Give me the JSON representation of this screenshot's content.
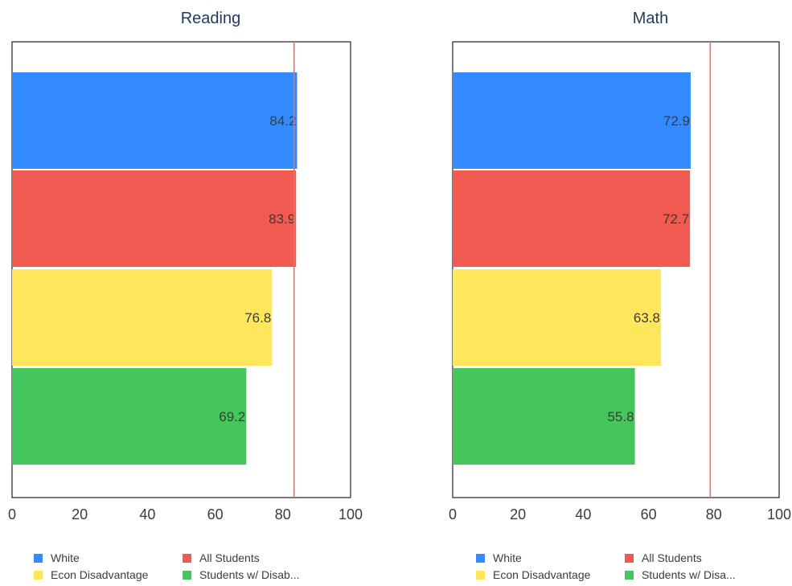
{
  "chart_data": [
    {
      "type": "bar",
      "orientation": "horizontal",
      "title": "Reading",
      "xlim": [
        0,
        100
      ],
      "xticks": [
        0,
        20,
        40,
        60,
        80,
        100
      ],
      "reference_line": 83.3,
      "reference_color": "#e8706a",
      "grid": false,
      "series": [
        {
          "name": "White",
          "value": 84.2,
          "label": "84.2",
          "color": "#338bff"
        },
        {
          "name": "All Students",
          "value": 83.9,
          "label": "83.9",
          "color": "#f05a50"
        },
        {
          "name": "Econ Disadvantage",
          "value": 76.8,
          "label": "76.8",
          "color": "#ffe65a"
        },
        {
          "name": "Students w/ Disabilities",
          "value": 69.2,
          "label": "69.2",
          "color": "#45c65c"
        }
      ],
      "legend": [
        "White",
        "All Students",
        "Econ Disadvantage",
        "Students w/ Disab..."
      ]
    },
    {
      "type": "bar",
      "orientation": "horizontal",
      "title": "Math",
      "xlim": [
        0,
        100
      ],
      "xticks": [
        0,
        20,
        40,
        60,
        80,
        100
      ],
      "reference_line": 78.9,
      "reference_color": "#e8706a",
      "grid": false,
      "series": [
        {
          "name": "White",
          "value": 72.9,
          "label": "72.9",
          "color": "#338bff"
        },
        {
          "name": "All Students",
          "value": 72.7,
          "label": "72.7",
          "color": "#f05a50"
        },
        {
          "name": "Econ Disadvantage",
          "value": 63.8,
          "label": "63.8",
          "color": "#ffe65a"
        },
        {
          "name": "Students w/ Disabilities",
          "value": 55.8,
          "label": "55.8",
          "color": "#45c65c"
        }
      ],
      "legend": [
        "White",
        "All Students",
        "Econ Disadvantage",
        "Students w/ Disa..."
      ]
    }
  ]
}
